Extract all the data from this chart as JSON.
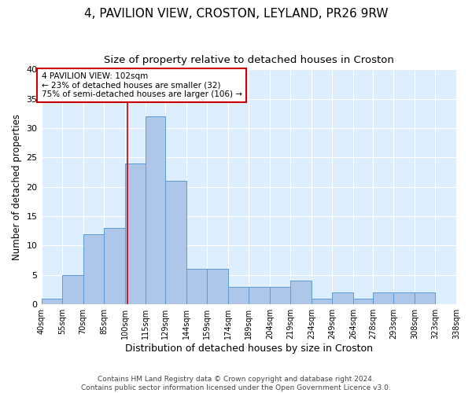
{
  "title": "4, PAVILION VIEW, CROSTON, LEYLAND, PR26 9RW",
  "subtitle": "Size of property relative to detached houses in Croston",
  "xlabel": "Distribution of detached houses by size in Croston",
  "ylabel": "Number of detached properties",
  "bar_labels": [
    "40sqm",
    "55sqm",
    "70sqm",
    "85sqm",
    "100sqm",
    "115sqm",
    "129sqm",
    "144sqm",
    "159sqm",
    "174sqm",
    "189sqm",
    "204sqm",
    "219sqm",
    "234sqm",
    "249sqm",
    "264sqm",
    "278sqm",
    "293sqm",
    "308sqm",
    "323sqm",
    "338sqm"
  ],
  "bar_heights": [
    1,
    5,
    12,
    13,
    24,
    32,
    21,
    6,
    6,
    3,
    3,
    3,
    4,
    1,
    2,
    1,
    2,
    2,
    2,
    0
  ],
  "bin_edges": [
    40,
    55,
    70,
    85,
    100,
    115,
    129,
    144,
    159,
    174,
    189,
    204,
    219,
    234,
    249,
    264,
    278,
    293,
    308,
    323,
    338
  ],
  "bar_color": "#aec6e8",
  "bar_edge_color": "#5b9bd5",
  "vline_x": 102,
  "vline_color": "#cc0000",
  "annotation_text": "4 PAVILION VIEW: 102sqm\n← 23% of detached houses are smaller (32)\n75% of semi-detached houses are larger (106) →",
  "annotation_box_color": "#ffffff",
  "annotation_box_edge": "#cc0000",
  "ylim": [
    0,
    40
  ],
  "yticks": [
    0,
    5,
    10,
    15,
    20,
    25,
    30,
    35,
    40
  ],
  "bg_color": "#ddeeff",
  "footer": "Contains HM Land Registry data © Crown copyright and database right 2024.\nContains public sector information licensed under the Open Government Licence v3.0.",
  "title_fontsize": 11,
  "subtitle_fontsize": 9.5,
  "xlabel_fontsize": 9,
  "ylabel_fontsize": 8.5
}
